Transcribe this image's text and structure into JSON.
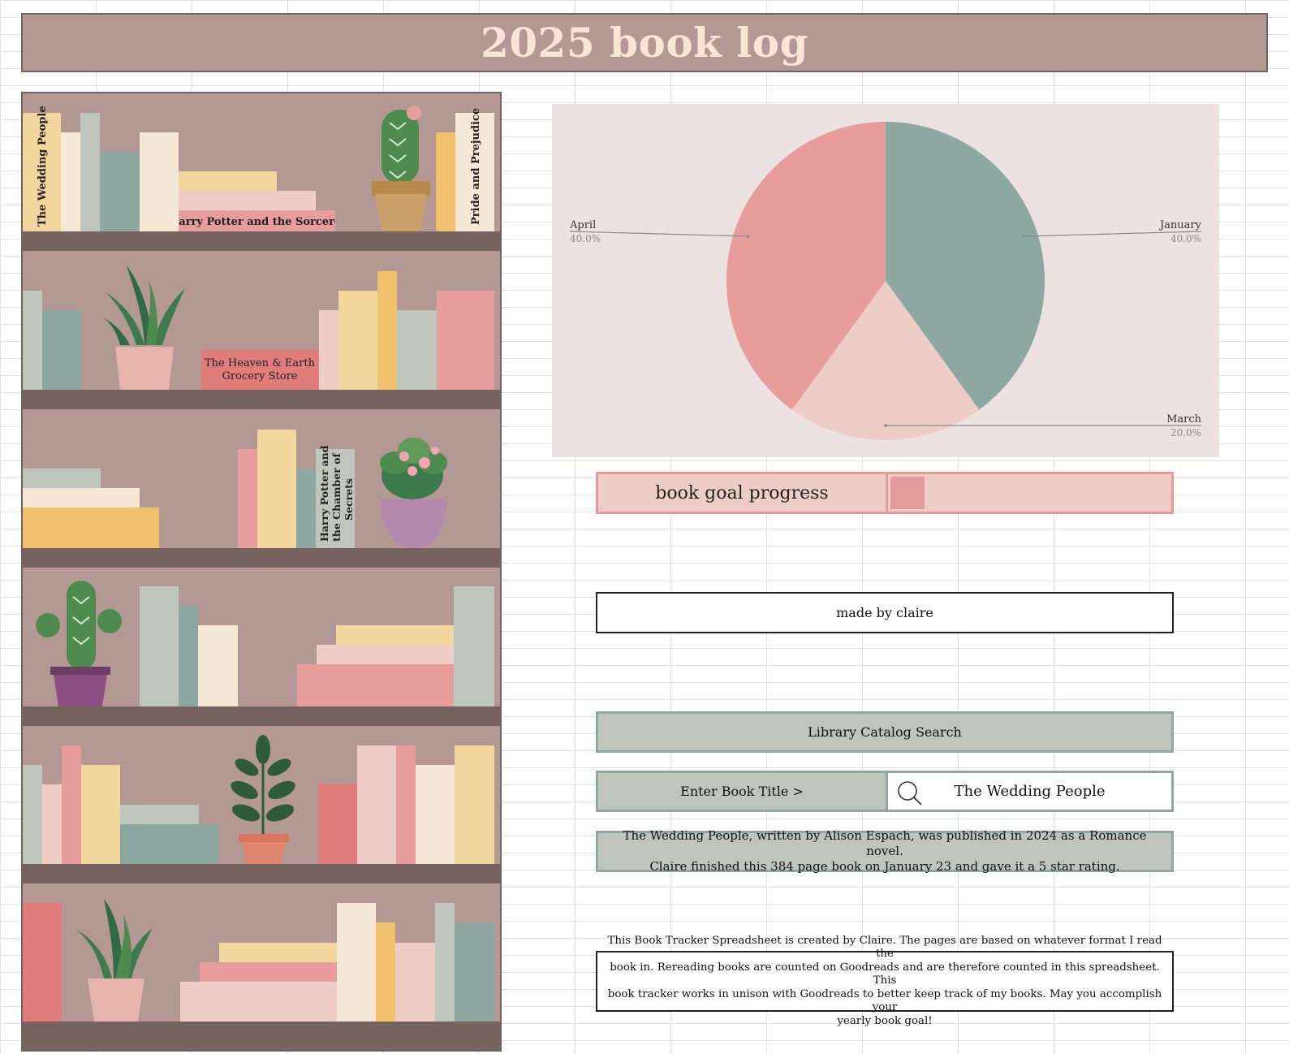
{
  "header": {
    "title": "2025 book log"
  },
  "bookshelf": {
    "spine_titles": [
      "The Wedding People",
      "Harry Potter and the Sorcerer's Stone",
      "Pride and Prejudice",
      "The Heaven & Earth",
      "Grocery Store",
      "Harry Potter and",
      "the Chamber of",
      "Secrets"
    ]
  },
  "chart_data": {
    "type": "pie",
    "title": "",
    "slices": [
      {
        "label": "January",
        "value": 40.0,
        "value_label": "40.0%",
        "color": "#8da7a1"
      },
      {
        "label": "March",
        "value": 20.0,
        "value_label": "20.0%",
        "color": "#efcdc7"
      },
      {
        "label": "April",
        "value": 40.0,
        "value_label": "40.0%",
        "color": "#e69d9c"
      }
    ],
    "legend": "none",
    "label_color": "#333333",
    "percent_color": "#8a8a8a"
  },
  "goal": {
    "label": "book goal progress",
    "progress_fraction": 0.12,
    "fill_color": "#e59a9a"
  },
  "made_by": "made by claire",
  "library_search": {
    "header": "Library Catalog Search",
    "input_label": "Enter Book Title >",
    "input_value": "The Wedding People",
    "icon": "search-icon"
  },
  "result": {
    "line1": "The Wedding People, written by Alison Espach, was published in 2024 as a Romance novel.",
    "line2": "Claire finished this 384 page book on January 23 and gave it a 5 star rating."
  },
  "about": {
    "line1": "This Book Tracker Spreadsheet is created by Claire. The pages are based on whatever format I read the",
    "line2": "book in. Rereading books are counted on Goodreads and are therefore counted in this spreadsheet. This",
    "line3": "book tracker works in unison with Goodreads to better keep track of my books. May you accomplish your",
    "line4": "yearly book goal!"
  },
  "colors": {
    "shelf_bg": "#b39893",
    "shelf_board": "#76625f",
    "sage": "#8fa8a1",
    "pink": "#e59a9a",
    "cream": "#f7e6d4"
  }
}
